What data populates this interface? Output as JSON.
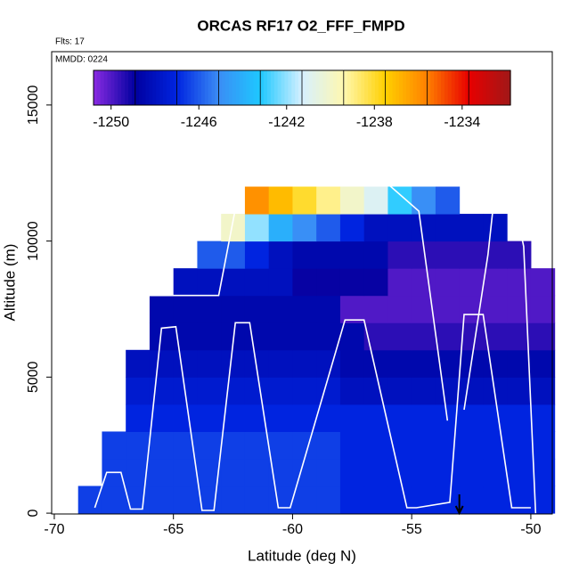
{
  "chart_data": {
    "type": "heatmap",
    "title": "ORCAS RF17 O2_FFF_FMPD",
    "subtitle": "Flts: 17",
    "annotation": "MMDD: 0224",
    "x_label": "Latitude (deg N)",
    "y_label": "Altitude (m)",
    "xlim": [
      -70.11,
      -49.1
    ],
    "ylim": [
      -30,
      16960
    ],
    "xticks": [
      -70,
      -65,
      -60,
      -55,
      -50
    ],
    "yticks": [
      0,
      5000,
      10000,
      15000
    ],
    "x": [
      -68.5,
      -67.5,
      -66.5,
      -65.5,
      -64.5,
      -63.5,
      -62.5,
      -61.5,
      -60.5,
      -59.5,
      -58.5,
      -57.5,
      -56.5,
      -55.5,
      -54.5,
      -53.5,
      -52.5,
      -51.5,
      -50.5,
      -49.5
    ],
    "y": [
      500,
      1500,
      2500,
      3500,
      4500,
      5500,
      6500,
      7500,
      8500,
      9500,
      10500,
      11500
    ],
    "values": [
      [
        -1246.5,
        -1246.5,
        -1246.5,
        -1246.5,
        -1246.5,
        -1246.5,
        -1246.5,
        -1246.5,
        -1246.5,
        -1246.5,
        -1246.5,
        -1247,
        -1247,
        -1247,
        -1247,
        -1247,
        -1247,
        -1247,
        -1247,
        -1247
      ],
      [
        null,
        -1246.5,
        -1246.5,
        -1246.5,
        -1246.5,
        -1246.5,
        -1246.5,
        -1246.5,
        -1246.5,
        -1246.5,
        -1246.5,
        -1247,
        -1247,
        -1247,
        -1247,
        -1247,
        -1247,
        -1247,
        -1247,
        -1247
      ],
      [
        null,
        -1246.5,
        -1246.5,
        -1246.5,
        -1246.5,
        -1246.5,
        -1246.5,
        -1246.5,
        -1246.5,
        -1246.5,
        -1246.5,
        -1247,
        -1247,
        -1247,
        -1247,
        -1247,
        -1247,
        -1247,
        -1247,
        -1247
      ],
      [
        null,
        null,
        -1247,
        -1247,
        -1247,
        -1247,
        -1247,
        -1247,
        -1247,
        -1247,
        -1247,
        -1247,
        -1247,
        -1247,
        -1247,
        -1247,
        -1247,
        -1247,
        -1247,
        -1247
      ],
      [
        null,
        null,
        -1247.5,
        -1247.5,
        -1247.5,
        -1247.5,
        -1247.5,
        -1247.5,
        -1247.5,
        -1247.5,
        -1247.5,
        -1248,
        -1248,
        -1248,
        -1248,
        -1248,
        -1248,
        -1248,
        -1248,
        -1248
      ],
      [
        null,
        null,
        -1248,
        -1248,
        -1248,
        -1248,
        -1248,
        -1248,
        -1248,
        -1248,
        -1248,
        -1248.5,
        -1248.5,
        -1248.5,
        -1248.5,
        -1248.5,
        -1248.5,
        -1248.5,
        -1248.5,
        -1248.5
      ],
      [
        null,
        null,
        null,
        -1248.5,
        -1248.5,
        -1248.5,
        -1248.5,
        -1248.5,
        -1248.5,
        -1248.5,
        -1248.5,
        -1248.5,
        -1249.5,
        -1249.5,
        -1249.5,
        -1249.5,
        -1249.5,
        -1249.5,
        -1249.5,
        -1249.5
      ],
      [
        null,
        null,
        null,
        -1248.5,
        -1248.5,
        -1248.5,
        -1248.5,
        -1248.5,
        -1248.5,
        -1248.5,
        -1248.5,
        -1250,
        -1250,
        -1250,
        -1250,
        -1250,
        -1250,
        -1250,
        -1250,
        -1250
      ],
      [
        null,
        null,
        null,
        null,
        -1248,
        -1248,
        -1248,
        -1248,
        -1248,
        -1249,
        -1249,
        -1249,
        -1249,
        -1250,
        -1250,
        -1250,
        -1250,
        -1250,
        -1250,
        -1250
      ],
      [
        null,
        null,
        null,
        null,
        null,
        -1246,
        -1246,
        -1247,
        -1248,
        -1248.5,
        -1248.5,
        -1248.5,
        -1248.5,
        -1249.5,
        -1249.5,
        -1249.5,
        -1249.5,
        -1249.5,
        -1249.5,
        null
      ],
      [
        null,
        null,
        null,
        null,
        null,
        null,
        -1240,
        -1242,
        -1244,
        -1245,
        -1246,
        -1247,
        -1248,
        -1248,
        -1248,
        -1248,
        -1248,
        -1248,
        null,
        null
      ],
      [
        null,
        null,
        null,
        null,
        null,
        null,
        null,
        -1236,
        -1237,
        -1238,
        -1239,
        -1240,
        -1241,
        -1243,
        -1245,
        -1246,
        null,
        null,
        null,
        null
      ]
    ],
    "colormap": [
      "#8a2be2",
      "#0000a0",
      "#0024e0",
      "#3a8cf5",
      "#1ec8ff",
      "#d6f0ff",
      "#fff8b0",
      "#ffd000",
      "#ff8000",
      "#e80000",
      "#a01818"
    ],
    "cbar_lim": [
      -1250.8,
      -1231.8
    ],
    "cbar_ticks": [
      -1250,
      -1246,
      -1242,
      -1238,
      -1234
    ],
    "tracks": [
      {
        "color": "#ffffff",
        "x": [
          -68.3,
          -67.8,
          -67.2,
          -66.8,
          -66.3,
          -65.5,
          -64.9,
          -63.8,
          -63.3,
          -62.4,
          -61.8,
          -60.6,
          -60.1,
          -57.8,
          -57.0,
          -55.2,
          -54.8,
          -53.4,
          -52.8,
          -52.0,
          -50.8,
          -50.0,
          null,
          -66.5,
          -63.1,
          -62.2,
          -56.0,
          -54.7,
          -53.5,
          null,
          -52.8,
          -51.8,
          -51.5,
          -50.8,
          -50.3,
          -49.8
        ],
        "y": [
          200,
          1500,
          1500,
          150,
          150,
          6800,
          6850,
          100,
          100,
          7000,
          7000,
          200,
          200,
          7100,
          7100,
          200,
          200,
          400,
          7300,
          7300,
          200,
          200,
          null,
          8000,
          8000,
          12100,
          12100,
          11100,
          3400,
          null,
          3800,
          9500,
          11900,
          11900,
          9800,
          0
        ]
      }
    ],
    "marker_x": -53
  }
}
